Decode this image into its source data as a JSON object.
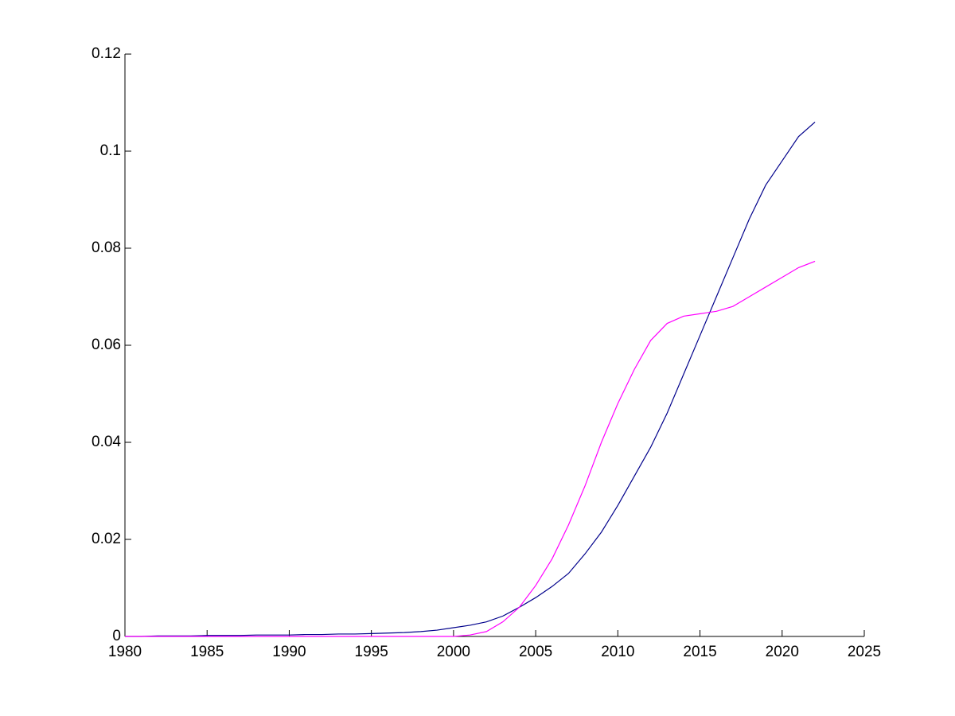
{
  "chart_data": {
    "type": "line",
    "x": [
      1980,
      1981,
      1982,
      1983,
      1984,
      1985,
      1986,
      1987,
      1988,
      1989,
      1990,
      1991,
      1992,
      1993,
      1994,
      1995,
      1996,
      1997,
      1998,
      1999,
      2000,
      2001,
      2002,
      2003,
      2004,
      2005,
      2006,
      2007,
      2008,
      2009,
      2010,
      2011,
      2012,
      2013,
      2014,
      2015,
      2016,
      2017,
      2018,
      2019,
      2020,
      2021,
      2022
    ],
    "series": [
      {
        "color": "#00008b",
        "values": [
          0,
          0,
          0.0001,
          0.0001,
          0.0001,
          0.0002,
          0.0002,
          0.0002,
          0.0003,
          0.0003,
          0.0003,
          0.0004,
          0.0004,
          0.0005,
          0.0005,
          0.0006,
          0.0007,
          0.0008,
          0.001,
          0.0013,
          0.0018,
          0.0023,
          0.003,
          0.0042,
          0.006,
          0.008,
          0.0103,
          0.013,
          0.017,
          0.0215,
          0.027,
          0.033,
          0.039,
          0.046,
          0.054,
          0.062,
          0.07,
          0.078,
          0.086,
          0.093,
          0.098,
          0.103,
          0.106
        ]
      },
      {
        "color": "#ff00ff",
        "values": [
          0,
          0,
          0,
          0,
          0,
          0,
          0,
          0,
          0,
          0,
          0,
          0,
          0,
          0,
          0,
          0,
          0,
          0,
          0,
          0,
          0,
          0.0003,
          0.001,
          0.003,
          0.006,
          0.0105,
          0.016,
          0.023,
          0.031,
          0.04,
          0.048,
          0.055,
          0.061,
          0.0645,
          0.066,
          0.0665,
          0.067,
          0.068,
          0.07,
          0.072,
          0.074,
          0.076,
          0.0773
        ]
      }
    ],
    "xlim": [
      1980,
      2025
    ],
    "xticks": [
      1980,
      1985,
      1990,
      1995,
      2000,
      2005,
      2010,
      2015,
      2020,
      2025
    ],
    "ylim": [
      0,
      0.12
    ],
    "yticks": [
      0,
      0.02,
      0.04,
      0.06,
      0.08,
      0.1,
      0.12
    ]
  }
}
